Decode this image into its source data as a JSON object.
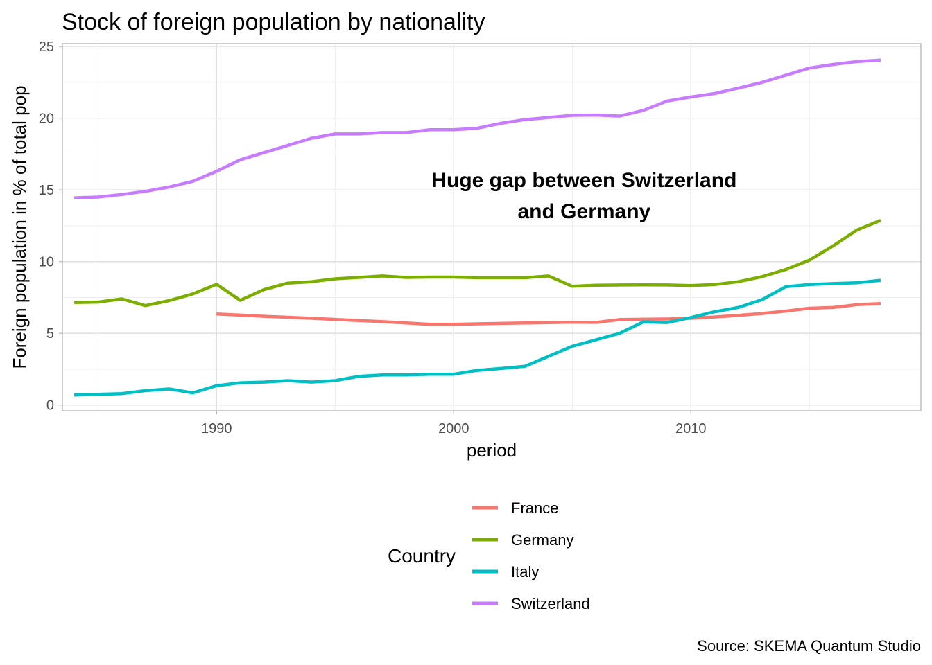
{
  "chart_data": {
    "type": "line",
    "title": "Stock of foreign population by nationality",
    "xlabel": "period",
    "ylabel": "Foreign population in % of total pop",
    "xlim": [
      1983.5,
      2019.7
    ],
    "ylim": [
      -0.4,
      25.2
    ],
    "x_ticks": [
      1990,
      2000,
      2010
    ],
    "y_ticks": [
      0,
      5,
      10,
      15,
      20,
      25
    ],
    "grid": true,
    "legend_position": "bottom",
    "legend_title": "Country",
    "annotation": {
      "lines": [
        "Huge gap between Switzerland",
        "and Germany"
      ],
      "x": 2005.5,
      "y": 15.2
    },
    "caption": "Source: SKEMA Quantum Studio",
    "series": [
      {
        "name": "France",
        "color": "#F8766D",
        "x": [
          1990,
          1991,
          1992,
          1993,
          1994,
          1995,
          1996,
          1997,
          1998,
          1999,
          2000,
          2001,
          2002,
          2003,
          2004,
          2005,
          2006,
          2007,
          2008,
          2009,
          2010,
          2011,
          2012,
          2013,
          2014,
          2015,
          2016,
          2017,
          2018
        ],
        "y": [
          6.35,
          6.27,
          6.19,
          6.12,
          6.05,
          5.97,
          5.89,
          5.81,
          5.72,
          5.63,
          5.63,
          5.66,
          5.69,
          5.72,
          5.75,
          5.78,
          5.76,
          5.96,
          5.98,
          6.0,
          6.05,
          6.14,
          6.25,
          6.38,
          6.55,
          6.75,
          6.8,
          7.0,
          7.07
        ]
      },
      {
        "name": "Germany",
        "color": "#7CAE00",
        "x": [
          1984,
          1985,
          1986,
          1987,
          1988,
          1989,
          1990,
          1991,
          1992,
          1993,
          1994,
          1995,
          1996,
          1997,
          1998,
          1999,
          2000,
          2001,
          2002,
          2003,
          2004,
          2005,
          2006,
          2007,
          2008,
          2009,
          2010,
          2011,
          2012,
          2013,
          2014,
          2015,
          2016,
          2017,
          2018
        ],
        "y": [
          7.15,
          7.18,
          7.4,
          6.93,
          7.28,
          7.75,
          8.42,
          7.3,
          8.05,
          8.5,
          8.6,
          8.8,
          8.9,
          9.0,
          8.9,
          8.92,
          8.92,
          8.88,
          8.88,
          8.88,
          9.0,
          8.28,
          8.35,
          8.37,
          8.38,
          8.37,
          8.33,
          8.4,
          8.6,
          8.95,
          9.45,
          10.1,
          11.1,
          12.2,
          12.88
        ]
      },
      {
        "name": "Italy",
        "color": "#00BFC4",
        "x": [
          1984,
          1985,
          1986,
          1987,
          1988,
          1989,
          1990,
          1991,
          1992,
          1993,
          1994,
          1995,
          1996,
          1997,
          1998,
          1999,
          2000,
          2001,
          2002,
          2003,
          2004,
          2005,
          2006,
          2007,
          2008,
          2009,
          2010,
          2011,
          2012,
          2013,
          2014,
          2015,
          2016,
          2017,
          2018
        ],
        "y": [
          0.7,
          0.75,
          0.8,
          1.0,
          1.12,
          0.85,
          1.35,
          1.55,
          1.6,
          1.7,
          1.6,
          1.7,
          2.0,
          2.1,
          2.1,
          2.15,
          2.15,
          2.42,
          2.55,
          2.7,
          3.4,
          4.1,
          4.55,
          5.0,
          5.8,
          5.75,
          6.1,
          6.5,
          6.8,
          7.35,
          8.25,
          8.4,
          8.47,
          8.52,
          8.7
        ]
      },
      {
        "name": "Switzerland",
        "color": "#C77CFF",
        "x": [
          1984,
          1985,
          1986,
          1987,
          1988,
          1989,
          1990,
          1991,
          1992,
          1993,
          1994,
          1995,
          1996,
          1997,
          1998,
          1999,
          2000,
          2001,
          2002,
          2003,
          2004,
          2005,
          2006,
          2007,
          2008,
          2009,
          2010,
          2011,
          2012,
          2013,
          2014,
          2015,
          2016,
          2017,
          2018
        ],
        "y": [
          14.45,
          14.5,
          14.68,
          14.9,
          15.2,
          15.6,
          16.3,
          17.1,
          17.6,
          18.1,
          18.6,
          18.9,
          18.9,
          19.0,
          19.0,
          19.2,
          19.2,
          19.3,
          19.65,
          19.9,
          20.05,
          20.2,
          20.22,
          20.15,
          20.55,
          21.2,
          21.48,
          21.72,
          22.1,
          22.5,
          23.0,
          23.5,
          23.75,
          23.95,
          24.05
        ]
      }
    ]
  }
}
